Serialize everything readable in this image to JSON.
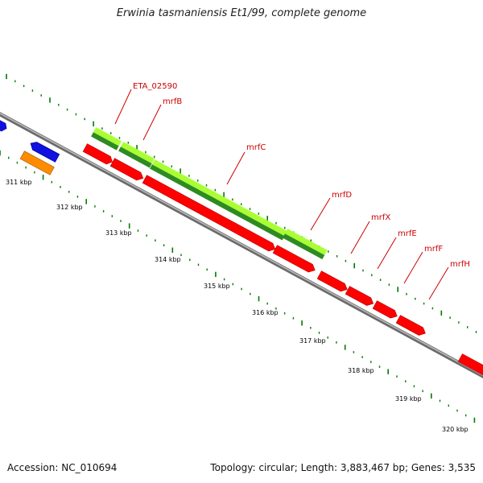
{
  "title": "Erwinia tasmaniensis Et1/99, complete genome",
  "footer": {
    "accession": "Accession: NC_010694",
    "summary": "Topology: circular; Length: 3,883,467 bp; Genes: 3,535"
  },
  "colors": {
    "backbone": "#8a8a8a",
    "gene_cds": "#ff0000",
    "gene_other_blue": "#1010e0",
    "gene_other_orange": "#ff8c00",
    "cluster_light": "#aaff33",
    "cluster_dark": "#2e8b22",
    "tick_dots": "#007a00",
    "gene_label": "#cc0000",
    "kbp_label": "#000000"
  },
  "kbp_labels": [
    "311 kbp",
    "312 kbp",
    "313 kbp",
    "314 kbp",
    "315 kbp",
    "316 kbp",
    "317 kbp",
    "318 kbp",
    "319 kbp",
    "320 kbp"
  ],
  "gene_labels": [
    "ETA_02590",
    "mrfB",
    "mrfC",
    "mrfD",
    "mrfX",
    "mrfE",
    "mrfF",
    "mrfH"
  ]
}
